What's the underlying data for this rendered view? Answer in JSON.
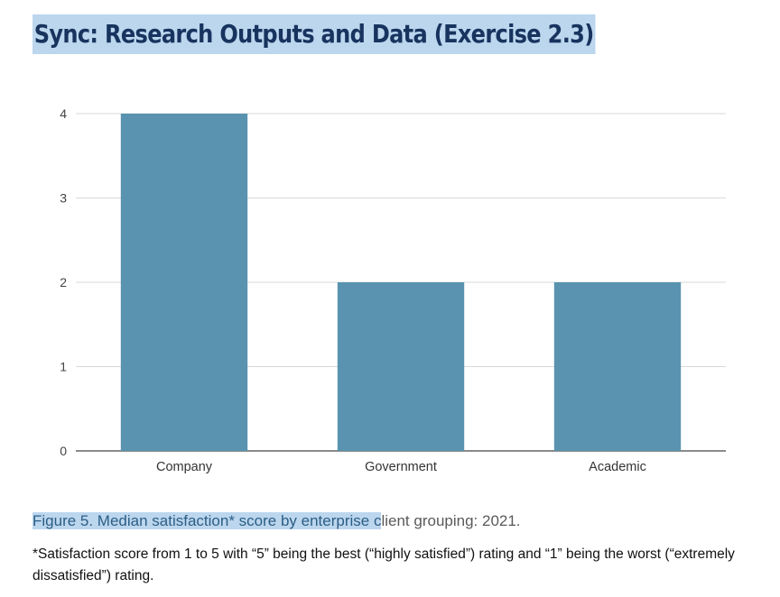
{
  "title": "Sync: Research Outputs and Data (Exercise 2.3)",
  "caption": {
    "highlighted": "Figure 5. Median satisfaction* score by enterprise c",
    "rest": "lient grouping: 2021."
  },
  "footnote": "*Satisfaction score from 1 to 5 with “5” being the best (“highly satisfied”) rating and “1” being the worst (“extremely dissatisfied”) rating.",
  "colors": {
    "bar": "#5a93b0",
    "grid": "#d9d9d9",
    "axis": "#444444",
    "title": "#17335e",
    "highlight": "#bcd6ee"
  },
  "chart_data": {
    "type": "bar",
    "categories": [
      "Company",
      "Government",
      "Academic"
    ],
    "values": [
      4,
      2,
      2
    ],
    "yticks": [
      0,
      1,
      2,
      3,
      4
    ],
    "ylim": [
      0,
      4
    ],
    "grid": true,
    "xlabel": "",
    "ylabel": ""
  }
}
